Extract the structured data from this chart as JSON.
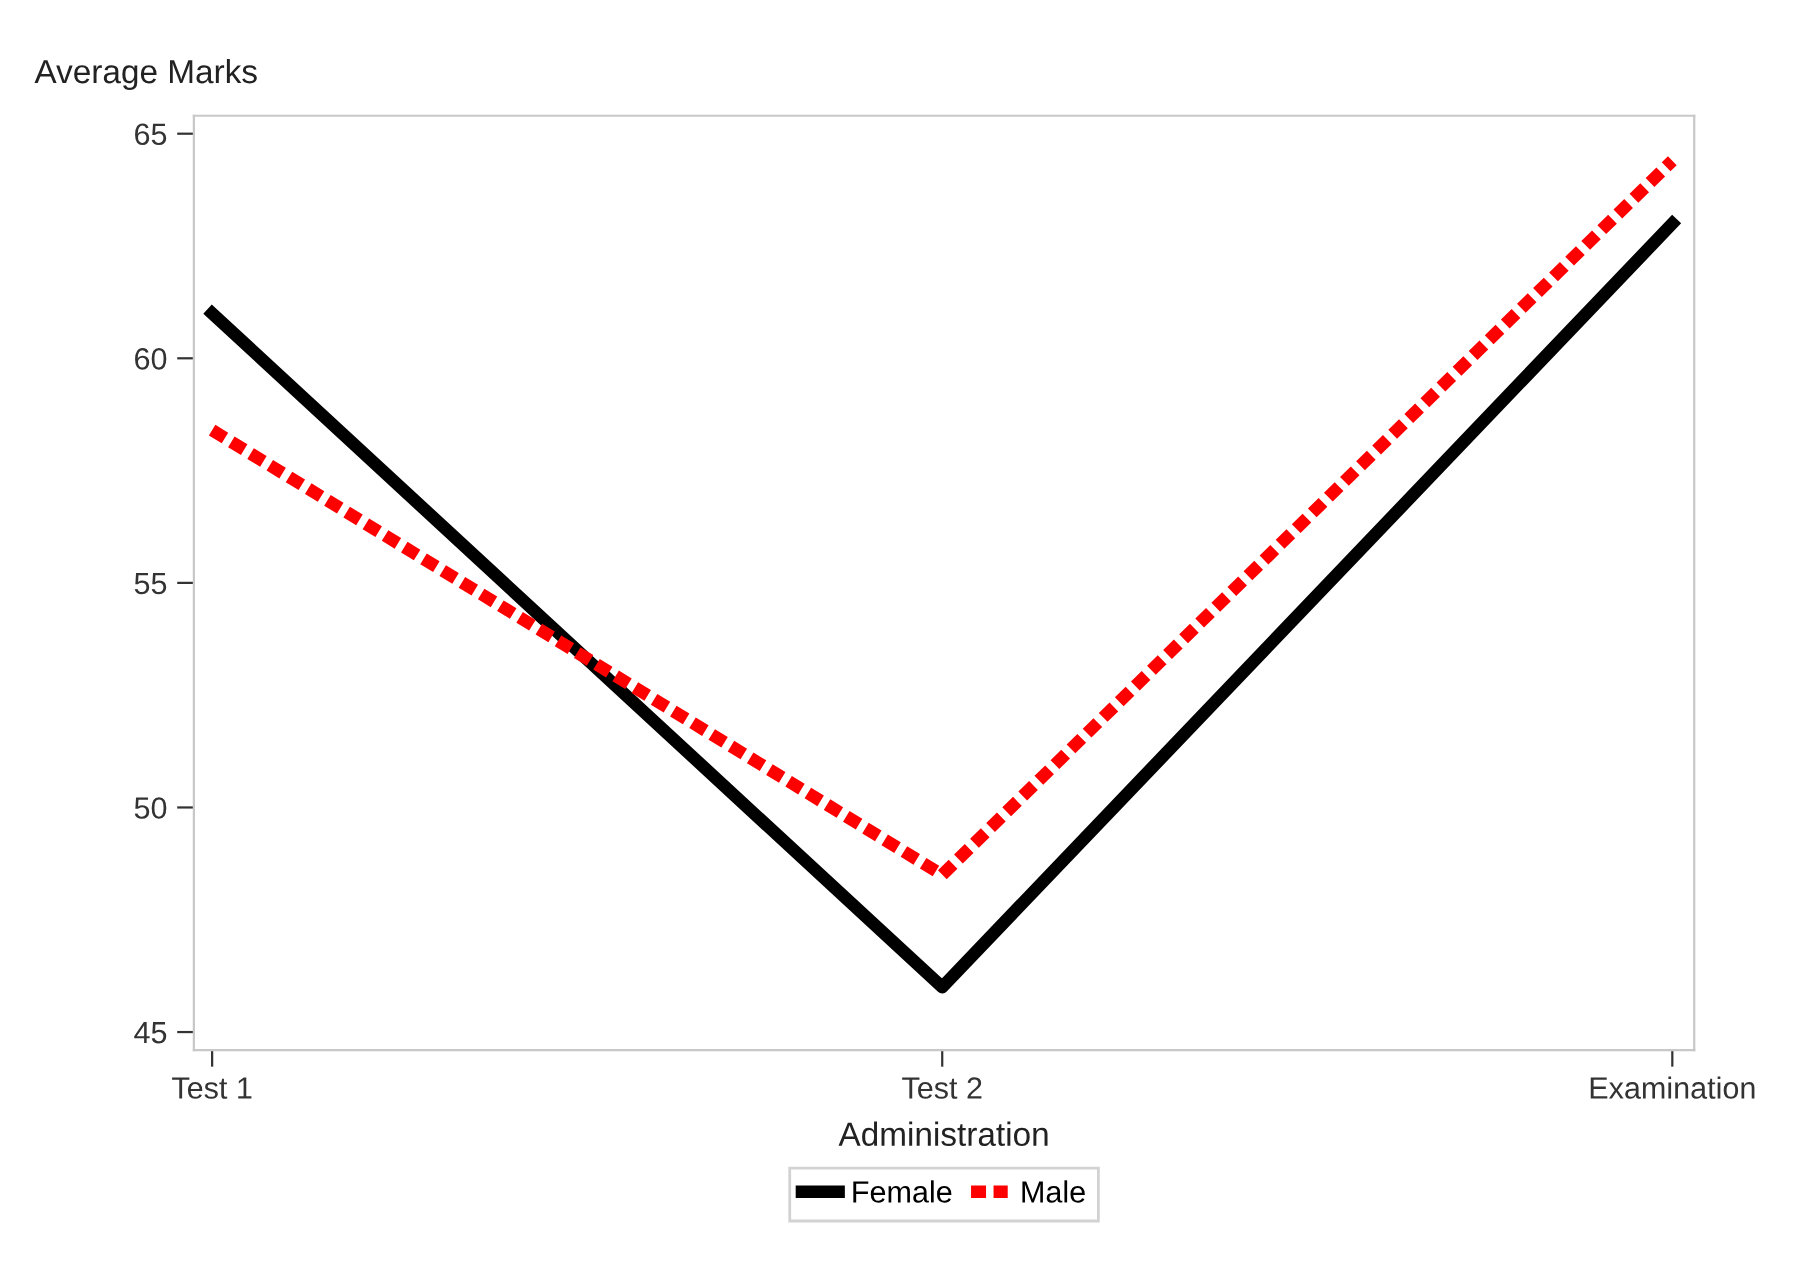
{
  "chart_data": {
    "type": "line",
    "ylabel": "Average Marks",
    "xlabel": "Administration",
    "categories": [
      "Test 1",
      "Test 2",
      "Examination"
    ],
    "series": [
      {
        "name": "Female",
        "color": "#000000",
        "line_style": "solid",
        "values": [
          61.0,
          46.0,
          63.0
        ]
      },
      {
        "name": "Male",
        "color": "#ff0000",
        "line_style": "dashed",
        "values": [
          58.4,
          48.5,
          64.4
        ]
      }
    ],
    "ylim": [
      44.6,
      65.4
    ],
    "yticks": [
      45,
      50,
      55,
      60,
      65
    ],
    "grid": false,
    "legend": "bottom",
    "marker": "none"
  }
}
